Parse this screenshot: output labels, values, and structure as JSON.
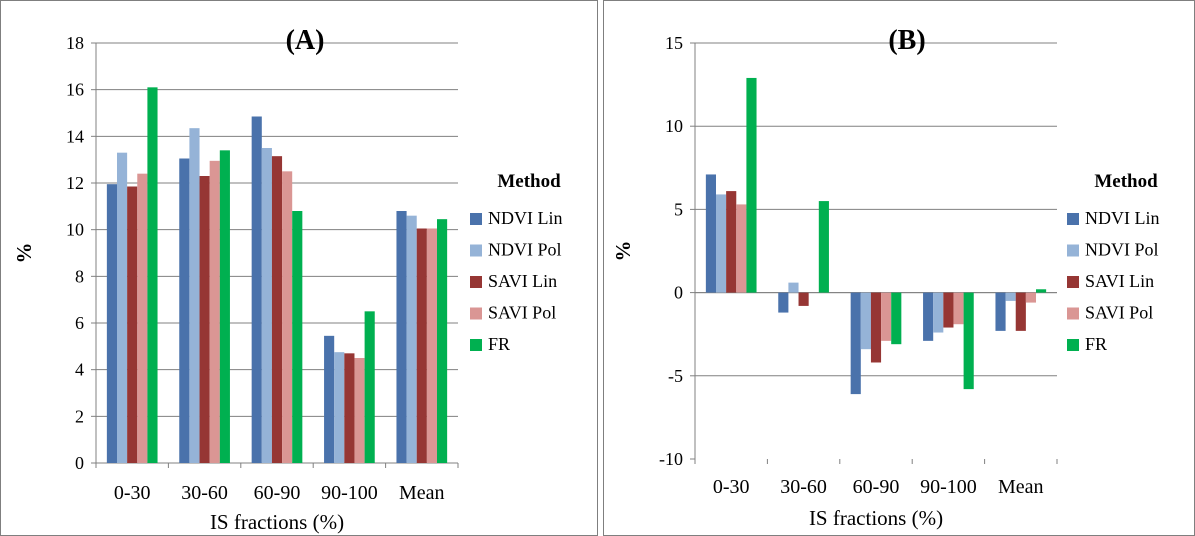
{
  "colors": {
    "NDVI Lin": "#4a72ab",
    "NDVI Pol": "#95b3d7",
    "SAVI Lin": "#963634",
    "SAVI Pol": "#da9694",
    "FR": "#00b050"
  },
  "chart_data": [
    {
      "type": "bar",
      "title": "(A)",
      "xlabel": "IS fractions (%)",
      "ylabel": "%",
      "categories": [
        "0-30",
        "30-60",
        "60-90",
        "90-100",
        "Mean"
      ],
      "ylim": [
        0,
        18
      ],
      "yticks": [
        0,
        2,
        4,
        6,
        8,
        10,
        12,
        14,
        16,
        18
      ],
      "legend_title": "Method",
      "legend_position": "right",
      "series": [
        {
          "name": "NDVI Lin",
          "values": [
            11.95,
            13.05,
            14.85,
            5.45,
            10.8
          ]
        },
        {
          "name": "NDVI Pol",
          "values": [
            13.3,
            14.35,
            13.5,
            4.75,
            10.6
          ]
        },
        {
          "name": "SAVI Lin",
          "values": [
            11.85,
            12.3,
            13.15,
            4.7,
            10.05
          ]
        },
        {
          "name": "SAVI Pol",
          "values": [
            12.4,
            12.95,
            12.5,
            4.5,
            10.05
          ]
        },
        {
          "name": "FR",
          "values": [
            16.1,
            13.4,
            10.8,
            6.5,
            10.45
          ]
        }
      ]
    },
    {
      "type": "bar",
      "title": "(B)",
      "xlabel": "IS fractions (%)",
      "ylabel": "%",
      "categories": [
        "0-30",
        "30-60",
        "60-90",
        "90-100",
        "Mean"
      ],
      "ylim": [
        -10,
        15
      ],
      "yticks": [
        -10,
        -5,
        0,
        5,
        10,
        15
      ],
      "legend_title": "Method",
      "legend_position": "right",
      "series": [
        {
          "name": "NDVI Lin",
          "values": [
            7.1,
            -1.2,
            -6.1,
            -2.9,
            -2.3
          ]
        },
        {
          "name": "NDVI Pol",
          "values": [
            5.9,
            0.6,
            -3.4,
            -2.4,
            -0.5
          ]
        },
        {
          "name": "SAVI Lin",
          "values": [
            6.1,
            -0.8,
            -4.2,
            -2.1,
            -2.3
          ]
        },
        {
          "name": "SAVI Pol",
          "values": [
            5.3,
            0.0,
            -2.9,
            -1.9,
            -0.6
          ]
        },
        {
          "name": "FR",
          "values": [
            12.9,
            5.5,
            -3.1,
            -5.8,
            0.2
          ]
        }
      ]
    }
  ]
}
